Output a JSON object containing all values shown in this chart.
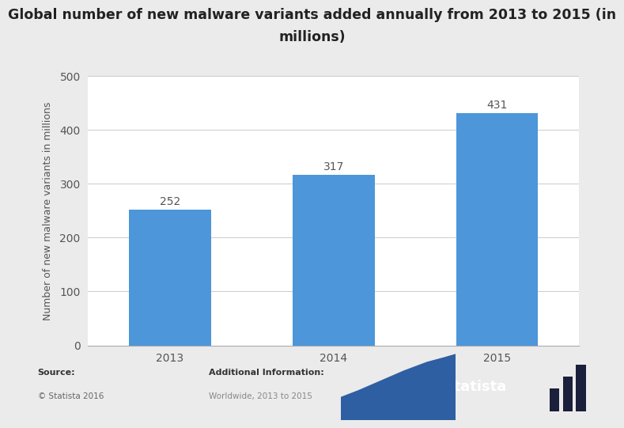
{
  "title_line1": "Global number of new malware variants added annually from 2013 to 2015 (in",
  "title_line2": "millions)",
  "categories": [
    "2013",
    "2014",
    "2015"
  ],
  "values": [
    252,
    317,
    431
  ],
  "bar_color": "#4d96d9",
  "ylabel": "Number of new malware variants in millions",
  "ylim": [
    0,
    500
  ],
  "yticks": [
    0,
    100,
    200,
    300,
    400,
    500
  ],
  "title_fontsize": 12.5,
  "label_fontsize": 9,
  "tick_fontsize": 10,
  "value_fontsize": 10,
  "background_color": "#ebebeb",
  "plot_background_color": "#ffffff",
  "grid_color": "#cccccc",
  "source_label": "Source:",
  "source_value": "© Statista 2016",
  "additional_label": "Additional Information:",
  "additional_value": "Worldwide, 2013 to 2015",
  "statista_text": "statista",
  "bar_width": 0.5,
  "statista_dark_color": "#1a1f3c",
  "wave_color": "#2e5fa3"
}
